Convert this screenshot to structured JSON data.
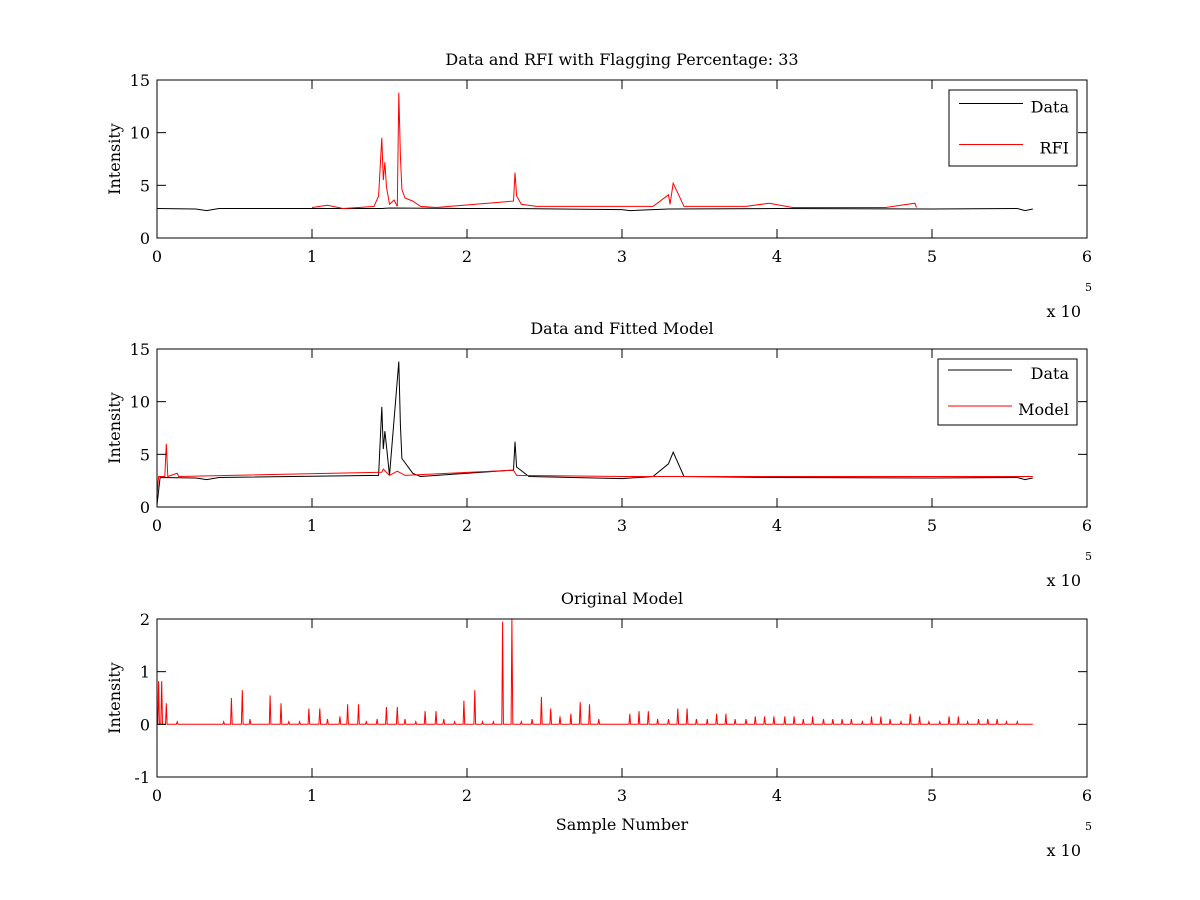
{
  "chart_data": [
    {
      "type": "line",
      "title": "Data and RFI with Flagging Percentage: 33",
      "xlabel": "",
      "ylabel": "Intensity",
      "xlim": [
        0,
        600000
      ],
      "ylim": [
        0,
        15
      ],
      "xticks": [
        0,
        100000,
        200000,
        300000,
        400000,
        500000,
        600000
      ],
      "xtick_labels": [
        "0",
        "1",
        "2",
        "3",
        "4",
        "5",
        "6"
      ],
      "yticks": [
        0,
        5,
        10,
        15
      ],
      "ytick_labels": [
        "0",
        "5",
        "10",
        "15"
      ],
      "x_multiplier": "x 10",
      "x_multiplier_exp": "5",
      "grid": false,
      "legend_position": "top-right",
      "series": [
        {
          "name": "Data",
          "color": "#000000",
          "points": [
            [
              0,
              2.8
            ],
            [
              25000,
              2.75
            ],
            [
              32000,
              2.6
            ],
            [
              40000,
              2.8
            ],
            [
              100000,
              2.8
            ],
            [
              145000,
              2.8
            ],
            [
              150000,
              2.85
            ],
            [
              200000,
              2.8
            ],
            [
              230000,
              2.8
            ],
            [
              260000,
              2.75
            ],
            [
              300000,
              2.7
            ],
            [
              305000,
              2.6
            ],
            [
              330000,
              2.75
            ],
            [
              400000,
              2.8
            ],
            [
              500000,
              2.75
            ],
            [
              555000,
              2.8
            ],
            [
              560000,
              2.6
            ],
            [
              565000,
              2.75
            ]
          ]
        },
        {
          "name": "RFI",
          "color": "#ff0000",
          "points": [
            [
              100000,
              2.9
            ],
            [
              110000,
              3.1
            ],
            [
              120000,
              2.8
            ],
            [
              130000,
              2.9
            ],
            [
              140000,
              3.0
            ],
            [
              143000,
              4.0
            ],
            [
              145000,
              9.5
            ],
            [
              146000,
              5.5
            ],
            [
              147000,
              7.2
            ],
            [
              148000,
              4.9
            ],
            [
              150000,
              3.2
            ],
            [
              153000,
              3.6
            ],
            [
              155000,
              3.0
            ],
            [
              156000,
              13.8
            ],
            [
              157000,
              7.8
            ],
            [
              158000,
              4.6
            ],
            [
              160000,
              3.8
            ],
            [
              165000,
              3.5
            ],
            [
              170000,
              3.0
            ],
            [
              180000,
              2.9
            ],
            [
              230000,
              3.5
            ],
            [
              231000,
              6.2
            ],
            [
              232000,
              4.0
            ],
            [
              235000,
              3.2
            ],
            [
              245000,
              3.0
            ],
            [
              260000,
              3.0
            ],
            [
              270000,
              3.0
            ],
            [
              300000,
              3.0
            ],
            [
              320000,
              3.0
            ],
            [
              330000,
              4.1
            ],
            [
              331000,
              3.2
            ],
            [
              333000,
              5.2
            ],
            [
              340000,
              3.0
            ],
            [
              350000,
              3.0
            ],
            [
              380000,
              3.0
            ],
            [
              395000,
              3.3
            ],
            [
              410000,
              2.9
            ],
            [
              420000,
              2.9
            ],
            [
              470000,
              2.9
            ],
            [
              489000,
              3.3
            ],
            [
              490000,
              2.9
            ]
          ]
        }
      ]
    },
    {
      "type": "line",
      "title": "Data and Fitted Model",
      "xlabel": "",
      "ylabel": "Intensity",
      "xlim": [
        0,
        600000
      ],
      "ylim": [
        0,
        15
      ],
      "xticks": [
        0,
        100000,
        200000,
        300000,
        400000,
        500000,
        600000
      ],
      "xtick_labels": [
        "0",
        "1",
        "2",
        "3",
        "4",
        "5",
        "6"
      ],
      "yticks": [
        0,
        5,
        10,
        15
      ],
      "ytick_labels": [
        "0",
        "5",
        "10",
        "15"
      ],
      "x_multiplier": "x 10",
      "x_multiplier_exp": "5",
      "grid": false,
      "legend_position": "top-right",
      "series": [
        {
          "name": "Data",
          "color": "#000000",
          "points": [
            [
              0,
              0.2
            ],
            [
              2000,
              2.8
            ],
            [
              25000,
              2.75
            ],
            [
              32000,
              2.6
            ],
            [
              40000,
              2.8
            ],
            [
              143000,
              3.0
            ],
            [
              145000,
              9.5
            ],
            [
              146000,
              5.5
            ],
            [
              147000,
              7.2
            ],
            [
              150000,
              3.0
            ],
            [
              156000,
              13.8
            ],
            [
              157000,
              7.8
            ],
            [
              158000,
              4.6
            ],
            [
              165000,
              3.2
            ],
            [
              170000,
              2.9
            ],
            [
              230000,
              3.5
            ],
            [
              231000,
              6.2
            ],
            [
              232000,
              3.8
            ],
            [
              240000,
              2.9
            ],
            [
              300000,
              2.7
            ],
            [
              320000,
              2.9
            ],
            [
              330000,
              4.1
            ],
            [
              333000,
              5.2
            ],
            [
              340000,
              2.9
            ],
            [
              400000,
              2.8
            ],
            [
              500000,
              2.75
            ],
            [
              555000,
              2.8
            ],
            [
              560000,
              2.6
            ],
            [
              565000,
              2.75
            ]
          ]
        },
        {
          "name": "Model",
          "color": "#ff0000",
          "points": [
            [
              0,
              1.2
            ],
            [
              1000,
              2.9
            ],
            [
              5000,
              2.9
            ],
            [
              6000,
              6.0
            ],
            [
              7000,
              2.9
            ],
            [
              13000,
              3.2
            ],
            [
              14000,
              2.9
            ],
            [
              145000,
              3.3
            ],
            [
              146000,
              3.6
            ],
            [
              150000,
              3.0
            ],
            [
              155000,
              3.4
            ],
            [
              160000,
              3.0
            ],
            [
              230000,
              3.5
            ],
            [
              232000,
              3.0
            ],
            [
              300000,
              2.9
            ],
            [
              565000,
              2.9
            ]
          ]
        }
      ]
    },
    {
      "type": "line",
      "title": "Original Model",
      "xlabel": "Sample Number",
      "ylabel": "Intensity",
      "xlim": [
        0,
        600000
      ],
      "ylim": [
        -1,
        2
      ],
      "xticks": [
        0,
        100000,
        200000,
        300000,
        400000,
        500000,
        600000
      ],
      "xtick_labels": [
        "0",
        "1",
        "2",
        "3",
        "4",
        "5",
        "6"
      ],
      "yticks": [
        -1,
        0,
        1,
        2
      ],
      "ytick_labels": [
        "-1",
        "0",
        "1",
        "2"
      ],
      "x_multiplier": "x 10",
      "x_multiplier_exp": "5",
      "grid": false,
      "series": [
        {
          "name": "",
          "color": "#ff0000",
          "baseline": 0,
          "spikes": [
            [
              1000,
              0.82
            ],
            [
              3000,
              0.82
            ],
            [
              6000,
              0.4
            ],
            [
              13000,
              0.05
            ],
            [
              43000,
              0.05
            ],
            [
              48000,
              0.5
            ],
            [
              55000,
              0.65
            ],
            [
              60000,
              0.1
            ],
            [
              73000,
              0.55
            ],
            [
              80000,
              0.4
            ],
            [
              85000,
              0.05
            ],
            [
              92000,
              0.05
            ],
            [
              98000,
              0.3
            ],
            [
              105000,
              0.3
            ],
            [
              110000,
              0.1
            ],
            [
              118000,
              0.15
            ],
            [
              123000,
              0.38
            ],
            [
              130000,
              0.38
            ],
            [
              135000,
              0.05
            ],
            [
              142000,
              0.1
            ],
            [
              148000,
              0.33
            ],
            [
              155000,
              0.33
            ],
            [
              160000,
              0.1
            ],
            [
              167000,
              0.05
            ],
            [
              173000,
              0.25
            ],
            [
              180000,
              0.25
            ],
            [
              185000,
              0.1
            ],
            [
              192000,
              0.05
            ],
            [
              198000,
              0.45
            ],
            [
              205000,
              0.65
            ],
            [
              210000,
              0.05
            ],
            [
              217000,
              0.05
            ],
            [
              223000,
              1.95
            ],
            [
              229000,
              2.0
            ],
            [
              235000,
              0.05
            ],
            [
              242000,
              0.1
            ],
            [
              248000,
              0.52
            ],
            [
              254000,
              0.3
            ],
            [
              260000,
              0.15
            ],
            [
              267000,
              0.2
            ],
            [
              273000,
              0.42
            ],
            [
              279000,
              0.38
            ],
            [
              285000,
              0.1
            ],
            [
              305000,
              0.2
            ],
            [
              311000,
              0.25
            ],
            [
              317000,
              0.25
            ],
            [
              323000,
              0.1
            ],
            [
              330000,
              0.1
            ],
            [
              336000,
              0.3
            ],
            [
              342000,
              0.3
            ],
            [
              348000,
              0.1
            ],
            [
              355000,
              0.1
            ],
            [
              361000,
              0.2
            ],
            [
              367000,
              0.2
            ],
            [
              373000,
              0.1
            ],
            [
              380000,
              0.1
            ],
            [
              386000,
              0.15
            ],
            [
              392000,
              0.15
            ],
            [
              398000,
              0.15
            ],
            [
              405000,
              0.15
            ],
            [
              411000,
              0.15
            ],
            [
              417000,
              0.1
            ],
            [
              423000,
              0.15
            ],
            [
              430000,
              0.1
            ],
            [
              436000,
              0.1
            ],
            [
              442000,
              0.1
            ],
            [
              448000,
              0.1
            ],
            [
              455000,
              0.05
            ],
            [
              461000,
              0.15
            ],
            [
              467000,
              0.15
            ],
            [
              473000,
              0.1
            ],
            [
              480000,
              0.05
            ],
            [
              486000,
              0.2
            ],
            [
              492000,
              0.15
            ],
            [
              498000,
              0.05
            ],
            [
              505000,
              0.05
            ],
            [
              511000,
              0.15
            ],
            [
              517000,
              0.15
            ],
            [
              523000,
              0.05
            ],
            [
              530000,
              0.1
            ],
            [
              536000,
              0.1
            ],
            [
              542000,
              0.1
            ],
            [
              548000,
              0.05
            ],
            [
              555000,
              0.05
            ]
          ],
          "line_end": 565000
        }
      ]
    }
  ]
}
